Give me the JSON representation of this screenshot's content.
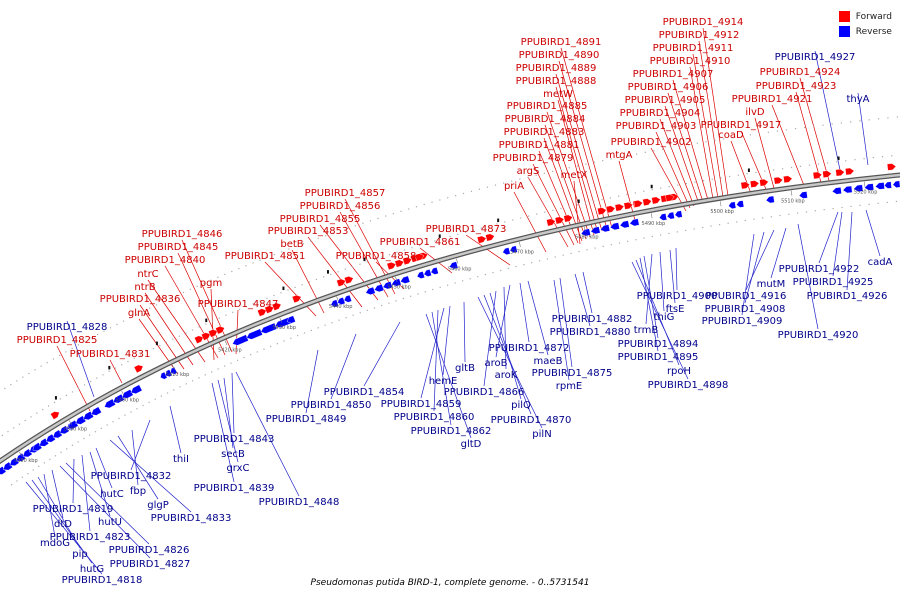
{
  "caption": "Pseudomonas putida BIRD-1, complete genome. - 0..5731541",
  "legend": [
    {
      "label": "Forward",
      "color": "#ff0000"
    },
    {
      "label": "Reverse",
      "color": "#0000ff"
    }
  ],
  "colors": {
    "forward": "#ff0000",
    "reverse": "#0000ff",
    "backbone": "#888888",
    "label_forward": "#cc0000",
    "label_reverse": "#00008b",
    "leader_forward": "#dd0000",
    "leader_reverse": "#2222cc"
  },
  "axis": {
    "ticks": [
      "5380 kbp",
      "5390 kbp",
      "5400 kbp",
      "5410 kbp",
      "5420 kbp",
      "5430 kbp",
      "5440 kbp",
      "5450 kbp",
      "5460 kbp",
      "5470 kbp",
      "5480 kbp",
      "5490 kbp",
      "5500 kbp",
      "5510 kbp",
      "5520 kbp"
    ]
  },
  "forward_labels": [
    "PPUBIRD1_4914",
    "PPUBIRD1_4912",
    "PPUBIRD1_4911",
    "PPUBIRD1_4910",
    "PPUBIRD1_4907",
    "PPUBIRD1_4906",
    "PPUBIRD1_4905",
    "PPUBIRD1_4904",
    "PPUBIRD1_4903",
    "PPUBIRD1_4902",
    "PPUBIRD1_4891",
    "PPUBIRD1_4890",
    "PPUBIRD1_4889",
    "PPUBIRD1_4888",
    "metW",
    "PPUBIRD1_4885",
    "PPUBIRD1_4884",
    "PPUBIRD1_4883",
    "PPUBIRD1_4881",
    "PPUBIRD1_4879",
    "argS",
    "metX",
    "priA",
    "mtgA",
    "PPUBIRD1_4924",
    "PPUBIRD1_4923",
    "PPUBIRD1_4921",
    "ilvD",
    "PPUBIRD1_4917",
    "coaD",
    "PPUBIRD1_4857",
    "PPUBIRD1_4856",
    "PPUBIRD1_4855",
    "PPUBIRD1_4853",
    "betB",
    "PPUBIRD1_4851",
    "PPUBIRD1_4873",
    "PPUBIRD1_4861",
    "PPUBIRD1_4858",
    "PPUBIRD1_4846",
    "PPUBIRD1_4845",
    "PPUBIRD1_4840",
    "ntrC",
    "ntrB",
    "pgm",
    "PPUBIRD1_4836",
    "glnA",
    "PPUBIRD1_4847",
    "PPUBIRD1_4825",
    "PPUBIRD1_4831"
  ],
  "reverse_labels": [
    "PPUBIRD1_4927",
    "thyA",
    "PPUBIRD1_4828",
    "cadA",
    "PPUBIRD1_4922",
    "PPUBIRD1_4925",
    "PPUBIRD1_4926",
    "mutM",
    "PPUBIRD1_4916",
    "PPUBIRD1_4908",
    "PPUBIRD1_4909",
    "PPUBIRD1_4920",
    "PPUBIRD1_4900",
    "ftsE",
    "thiG",
    "trmB",
    "PPUBIRD1_4894",
    "PPUBIRD1_4895",
    "rpoH",
    "PPUBIRD1_4898",
    "PPUBIRD1_4882",
    "PPUBIRD1_4880",
    "PPUBIRD1_4872",
    "maeB",
    "aroB",
    "aroK",
    "PPUBIRD1_4875",
    "rpmE",
    "PPUBIRD1_4866",
    "pilQ",
    "PPUBIRD1_4870",
    "pilN",
    "gltB",
    "hemE",
    "PPUBIRD1_4859",
    "PPUBIRD1_4860",
    "PPUBIRD1_4862",
    "gltD",
    "PPUBIRD1_4854",
    "PPUBIRD1_4850",
    "PPUBIRD1_4849",
    "PPUBIRD1_4843",
    "secB",
    "grxC",
    "PPUBIRD1_4839",
    "PPUBIRD1_4848",
    "thiI",
    "PPUBIRD1_4832",
    "fbp",
    "glgP",
    "PPUBIRD1_4833",
    "hutC",
    "hutU",
    "PPUBIRD1_4819",
    "PPUBIRD1_4823",
    "PPUBIRD1_4826",
    "PPUBIRD1_4827",
    "dtD",
    "mdoG",
    "pip",
    "hutG",
    "PPUBIRD1_4818"
  ]
}
